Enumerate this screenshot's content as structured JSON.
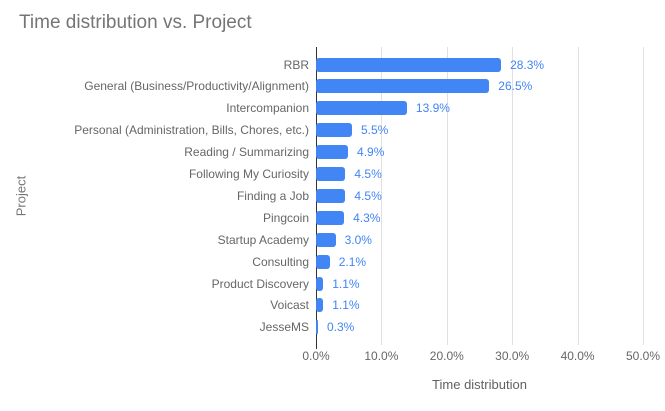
{
  "chart_data": {
    "type": "bar",
    "orientation": "horizontal",
    "title": "Time distribution vs. Project",
    "xlabel": "Time distribution",
    "ylabel": "Project",
    "categories": [
      "RBR",
      "General (Business/Productivity/Alignment)",
      "Intercompanion",
      "Personal (Administration, Bills, Chores, etc.)",
      "Reading / Summarizing",
      "Following My Curiosity",
      "Finding a Job",
      "Pingcoin",
      "Startup Academy",
      "Consulting",
      "Product Discovery",
      "Voicast",
      "JesseMS"
    ],
    "values": [
      28.3,
      26.5,
      13.9,
      5.5,
      4.9,
      4.5,
      4.5,
      4.3,
      3.0,
      2.1,
      1.1,
      1.1,
      0.3
    ],
    "data_labels": [
      "28.3%",
      "26.5%",
      "13.9%",
      "5.5%",
      "4.9%",
      "4.5%",
      "4.5%",
      "4.3%",
      "3.0%",
      "2.1%",
      "1.1%",
      "1.1%",
      "0.3%"
    ],
    "x_ticks": [
      "0.0%",
      "10.0%",
      "20.0%",
      "30.0%",
      "40.0%",
      "50.0%"
    ],
    "xlim": [
      0,
      50
    ],
    "grid": true,
    "legend": "none",
    "colors": {
      "bar": "#4285f4",
      "data_label": "#4285f4",
      "title_text": "#757575",
      "axis_title_text": "#757575",
      "tick_text": "#666666",
      "gridline": "#e0e0e0",
      "axis_line": "#333333",
      "background": "#ffffff"
    }
  }
}
